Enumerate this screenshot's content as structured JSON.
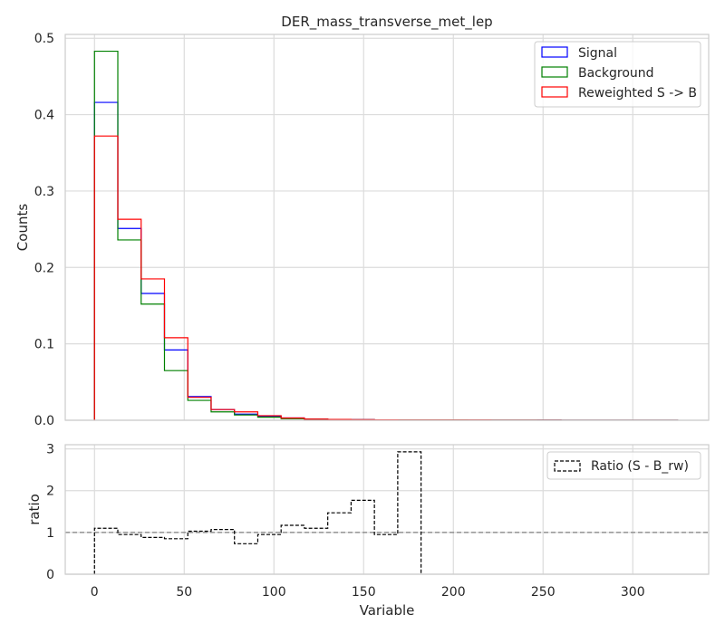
{
  "chart_data": [
    {
      "type": "histogram-step",
      "title": "DER_mass_transverse_met_lep",
      "ylabel": "Counts",
      "xlim": [
        -16.3,
        342.3
      ],
      "ylim": [
        0,
        0.505
      ],
      "xticks": [
        0,
        50,
        100,
        150,
        200,
        250,
        300
      ],
      "yticks": [
        0.0,
        0.1,
        0.2,
        0.3,
        0.4,
        0.5
      ],
      "ytick_labels": [
        "0.0",
        "0.1",
        "0.2",
        "0.3",
        "0.4",
        "0.5"
      ],
      "grid": true,
      "legend_position": "upper-right",
      "bin_edges": [
        0,
        13,
        26,
        39,
        52,
        65,
        78,
        91,
        104,
        117,
        130,
        143,
        156,
        169,
        182,
        195,
        208,
        221,
        234,
        247,
        260,
        273,
        286,
        299,
        312,
        325
      ],
      "series": [
        {
          "name": "Signal",
          "color": "#0000ff",
          "values": [
            0.416,
            0.251,
            0.166,
            0.092,
            0.031,
            0.014,
            0.008,
            0.005,
            0.003,
            0.0015,
            0.001,
            0.0007,
            0.0005,
            0.0004,
            0.0003,
            0.0003,
            0.0002,
            0.0002,
            0.0002,
            0.0003,
            0.0001,
            0.0001,
            0.0001,
            0.0001,
            0.0001
          ]
        },
        {
          "name": "Background",
          "color": "#008000",
          "values": [
            0.483,
            0.236,
            0.152,
            0.065,
            0.026,
            0.011,
            0.007,
            0.004,
            0.002,
            0.0014,
            0.0009,
            0.0006,
            0.0005,
            0.0004,
            0.0003,
            0.0003,
            0.0002,
            0.0002,
            0.0002,
            0.0002,
            0.0001,
            0.0001,
            0.0001,
            0.0001,
            0.0001
          ]
        },
        {
          "name": "Reweighted S -> B",
          "color": "#ff0000",
          "values": [
            0.372,
            0.263,
            0.185,
            0.108,
            0.03,
            0.014,
            0.011,
            0.006,
            0.003,
            0.0015,
            0.001,
            0.0008,
            0.0005,
            0.0004,
            0.0003,
            0.0003,
            0.0003,
            0.0002,
            0.0002,
            0.0002,
            0.0001,
            0.0001,
            0.0001,
            0.0001,
            0.0001
          ]
        }
      ]
    },
    {
      "type": "ratio-step",
      "ylabel": "ratio",
      "xlabel": "Variable",
      "xlim": [
        -16.3,
        342.3
      ],
      "ylim": [
        0,
        3.1
      ],
      "xticks": [
        0,
        50,
        100,
        150,
        200,
        250,
        300
      ],
      "yticks": [
        0,
        1,
        2,
        3
      ],
      "grid": true,
      "legend_position": "upper-right",
      "reference_line": 1,
      "bin_edges": [
        0,
        13,
        26,
        39,
        52,
        65,
        78,
        91,
        104,
        117,
        130,
        143,
        156,
        169,
        182
      ],
      "series": [
        {
          "name": "Ratio (S - B_rw)",
          "color": "#000000",
          "values": [
            1.1,
            0.95,
            0.88,
            0.85,
            1.03,
            1.07,
            0.73,
            0.95,
            1.17,
            1.1,
            1.47,
            1.77,
            0.95,
            2.93
          ]
        }
      ]
    }
  ]
}
